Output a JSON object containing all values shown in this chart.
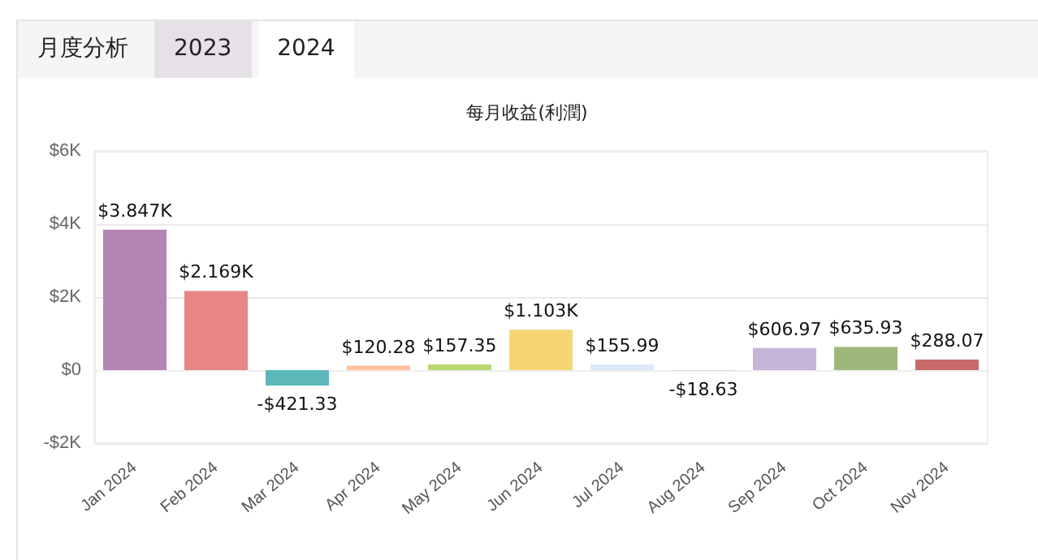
{
  "chart_data": {
    "type": "bar",
    "title": "每月收益(利潤)",
    "annotations": [
      "月度分析",
      "2023",
      "2024"
    ],
    "categories": [
      "Jan 2024",
      "Feb 2024",
      "Mar 2024",
      "Apr 2024",
      "May 2024",
      "Jun 2024",
      "Jul 2024",
      "Aug 2024",
      "Sep 2024",
      "Oct 2024",
      "Nov 2024"
    ],
    "values": [
      3847,
      2169,
      -421.33,
      120.28,
      157.35,
      1103,
      155.99,
      -18.63,
      606.97,
      635.93,
      288.07
    ],
    "value_labels": [
      "$3.847K",
      "$2.169K",
      "-$421.33",
      "$120.28",
      "$157.35",
      "$1.103K",
      "$155.99",
      "-$18.63",
      "$606.97",
      "$635.93",
      "$288.07"
    ],
    "colors": [
      "#b383b3",
      "#e88585",
      "#5cb8b8",
      "#ffc09c",
      "#b8d870",
      "#f5d673",
      "#dce9fb",
      "#d8d8e8",
      "#c5b5d8",
      "#9db87a",
      "#c86a6a"
    ],
    "ylim": [
      -2000,
      6000
    ],
    "yticks": [
      {
        "value": -2000,
        "label": "-$2K"
      },
      {
        "value": 0,
        "label": "$0"
      },
      {
        "value": 2000,
        "label": "$2K"
      },
      {
        "value": 4000,
        "label": "$4K"
      },
      {
        "value": 6000,
        "label": "$6K"
      }
    ],
    "grid": "y"
  }
}
